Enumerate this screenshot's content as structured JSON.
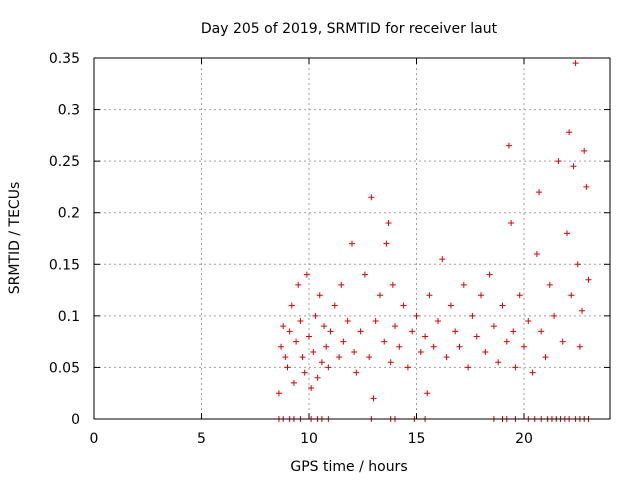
{
  "chart_data": {
    "type": "scatter",
    "title": "Day 205 of 2019, SRMTID for receiver laut",
    "xlabel": "GPS time / hours",
    "ylabel": "SRMTID / TECUs",
    "xlim": [
      0,
      24
    ],
    "ylim": [
      0,
      0.35
    ],
    "xticks": [
      0,
      5,
      10,
      15,
      20
    ],
    "xtick_labels": [
      "0",
      "5",
      "10",
      "15",
      "20"
    ],
    "yticks": [
      0,
      0.05,
      0.1,
      0.15,
      0.2,
      0.25,
      0.3,
      0.35
    ],
    "ytick_labels": [
      "0",
      "0.05",
      "0.1",
      "0.15",
      "0.2",
      "0.25",
      "0.3",
      "0.35"
    ],
    "grid": true,
    "marker": "+",
    "marker_color": "#e00000",
    "series": [
      {
        "name": "SRMTID",
        "x_range": [
          8.5,
          23.0
        ],
        "points": [
          [
            8.6,
            0.025
          ],
          [
            8.7,
            0.07
          ],
          [
            8.8,
            0.09
          ],
          [
            8.9,
            0.06
          ],
          [
            9.0,
            0.05
          ],
          [
            9.1,
            0.085
          ],
          [
            9.2,
            0.11
          ],
          [
            9.3,
            0.035
          ],
          [
            9.4,
            0.075
          ],
          [
            9.5,
            0.13
          ],
          [
            9.6,
            0.095
          ],
          [
            9.7,
            0.06
          ],
          [
            9.8,
            0.045
          ],
          [
            9.9,
            0.14
          ],
          [
            10.0,
            0.08
          ],
          [
            10.1,
            0.03
          ],
          [
            10.2,
            0.065
          ],
          [
            10.3,
            0.1
          ],
          [
            10.4,
            0.04
          ],
          [
            10.5,
            0.12
          ],
          [
            10.6,
            0.055
          ],
          [
            10.7,
            0.09
          ],
          [
            10.8,
            0.07
          ],
          [
            10.9,
            0.05
          ],
          [
            11.0,
            0.085
          ],
          [
            11.2,
            0.11
          ],
          [
            11.4,
            0.06
          ],
          [
            11.5,
            0.13
          ],
          [
            11.6,
            0.075
          ],
          [
            11.8,
            0.095
          ],
          [
            12.0,
            0.17
          ],
          [
            12.1,
            0.065
          ],
          [
            12.2,
            0.045
          ],
          [
            12.4,
            0.085
          ],
          [
            12.6,
            0.14
          ],
          [
            12.8,
            0.06
          ],
          [
            12.9,
            0.215
          ],
          [
            13.0,
            0.02
          ],
          [
            13.1,
            0.095
          ],
          [
            13.3,
            0.12
          ],
          [
            13.5,
            0.075
          ],
          [
            13.6,
            0.17
          ],
          [
            13.7,
            0.19
          ],
          [
            13.8,
            0.055
          ],
          [
            13.9,
            0.13
          ],
          [
            14.0,
            0.09
          ],
          [
            14.2,
            0.07
          ],
          [
            14.4,
            0.11
          ],
          [
            14.6,
            0.05
          ],
          [
            14.8,
            0.085
          ],
          [
            15.0,
            0.1
          ],
          [
            15.2,
            0.065
          ],
          [
            15.4,
            0.08
          ],
          [
            15.5,
            0.025
          ],
          [
            15.6,
            0.12
          ],
          [
            15.8,
            0.07
          ],
          [
            16.0,
            0.095
          ],
          [
            16.2,
            0.155
          ],
          [
            16.4,
            0.06
          ],
          [
            16.6,
            0.11
          ],
          [
            16.8,
            0.085
          ],
          [
            17.0,
            0.07
          ],
          [
            17.2,
            0.13
          ],
          [
            17.4,
            0.05
          ],
          [
            17.6,
            0.1
          ],
          [
            17.8,
            0.08
          ],
          [
            18.0,
            0.12
          ],
          [
            18.2,
            0.065
          ],
          [
            18.4,
            0.14
          ],
          [
            18.6,
            0.09
          ],
          [
            18.8,
            0.055
          ],
          [
            19.0,
            0.11
          ],
          [
            19.2,
            0.075
          ],
          [
            19.3,
            0.265
          ],
          [
            19.4,
            0.19
          ],
          [
            19.5,
            0.085
          ],
          [
            19.6,
            0.05
          ],
          [
            19.8,
            0.12
          ],
          [
            20.0,
            0.07
          ],
          [
            20.2,
            0.095
          ],
          [
            20.4,
            0.045
          ],
          [
            20.6,
            0.16
          ],
          [
            20.7,
            0.22
          ],
          [
            20.8,
            0.085
          ],
          [
            21.0,
            0.06
          ],
          [
            21.2,
            0.13
          ],
          [
            21.4,
            0.1
          ],
          [
            21.6,
            0.25
          ],
          [
            21.8,
            0.075
          ],
          [
            22.0,
            0.18
          ],
          [
            22.1,
            0.278
          ],
          [
            22.2,
            0.12
          ],
          [
            22.3,
            0.245
          ],
          [
            22.4,
            0.345
          ],
          [
            22.5,
            0.15
          ],
          [
            22.6,
            0.07
          ],
          [
            22.7,
            0.105
          ],
          [
            22.8,
            0.26
          ],
          [
            22.9,
            0.225
          ],
          [
            23.0,
            0.135
          ]
        ]
      }
    ],
    "zero_points_x": [
      8.6,
      8.8,
      9.1,
      9.3,
      9.6,
      10.1,
      10.4,
      10.6,
      10.9,
      12.9,
      13.8,
      14.0,
      14.9,
      15.4,
      18.6,
      19.0,
      19.2,
      19.6,
      20.2,
      20.5,
      20.8,
      21.1,
      21.3,
      21.5,
      21.7,
      21.9,
      22.1,
      22.4,
      22.6,
      22.8,
      23.0
    ]
  }
}
